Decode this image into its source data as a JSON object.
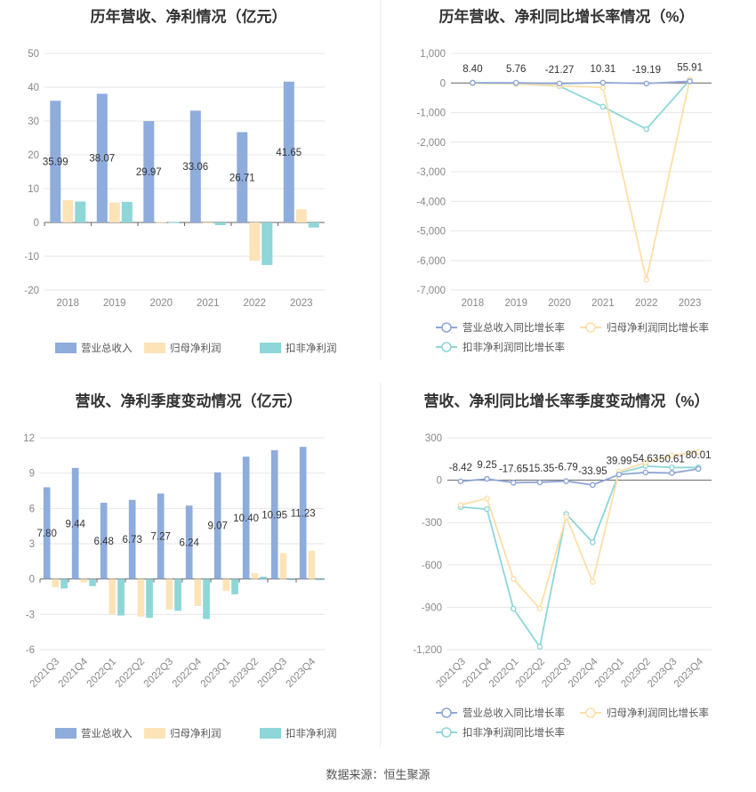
{
  "footer": "数据来源：恒生聚源",
  "colors": {
    "revenue": "#8eacdc",
    "net": "#fde3b8",
    "deducted": "#8ed6d8",
    "line_revenue": "#8ea6d6",
    "line_net": "#fddfa8",
    "line_deducted": "#8ed6d8"
  },
  "chart_data": [
    {
      "type": "bar",
      "title": "历年营收、净利情况（亿元）",
      "categories": [
        "2018",
        "2019",
        "2020",
        "2021",
        "2022",
        "2023"
      ],
      "ylim": [
        -20,
        50
      ],
      "yticks": [
        -20,
        -10,
        0,
        10,
        20,
        30,
        40,
        50
      ],
      "series": [
        {
          "name": "营业总收入",
          "values": [
            35.99,
            38.07,
            29.97,
            33.06,
            26.71,
            41.65
          ],
          "labels": [
            "35.99",
            "38.07",
            "29.97",
            "33.06",
            "26.71",
            "41.65"
          ]
        },
        {
          "name": "归母净利润",
          "values": [
            6.6,
            5.9,
            0.2,
            -0.2,
            -11.3,
            3.9
          ]
        },
        {
          "name": "扣非净利润",
          "values": [
            6.2,
            6.1,
            0.1,
            -0.8,
            -12.6,
            -1.5
          ]
        }
      ],
      "legend": "bottom"
    },
    {
      "type": "line",
      "title": "历年营收、净利同比增长率情况（%）",
      "categories": [
        "2018",
        "2019",
        "2020",
        "2021",
        "2022",
        "2023"
      ],
      "ylim": [
        -7000,
        1000
      ],
      "yticks": [
        -7000,
        -6000,
        -5000,
        -4000,
        -3000,
        -2000,
        -1000,
        0,
        1000
      ],
      "ytick_labels": [
        "-7,000",
        "-6,000",
        "-5,000",
        "-4,000",
        "-3,000",
        "-2,000",
        "-1,000",
        "0",
        "1,000"
      ],
      "series": [
        {
          "name": "营业总收入同比增长率",
          "values": [
            8.4,
            5.76,
            -21.27,
            10.31,
            -19.19,
            55.91
          ],
          "labels": [
            "8.40",
            "5.76",
            "-21.27",
            "10.31",
            "-19.19",
            "55.91"
          ]
        },
        {
          "name": "归母净利润同比增长率",
          "values": [
            -5,
            -20,
            -100,
            -150,
            -6650,
            120
          ]
        },
        {
          "name": "扣非净利润同比增长率",
          "values": [
            -10,
            -30,
            -110,
            -800,
            -1560,
            100
          ]
        }
      ],
      "legend": "bottom"
    },
    {
      "type": "bar",
      "title": "营收、净利季度变动情况（亿元）",
      "categories": [
        "2021Q3",
        "2021Q4",
        "2022Q1",
        "2022Q2",
        "2022Q3",
        "2022Q4",
        "2023Q1",
        "2023Q2",
        "2023Q3",
        "2023Q4"
      ],
      "ylim": [
        -6,
        12
      ],
      "yticks": [
        -6,
        -3,
        0,
        3,
        6,
        9,
        12
      ],
      "series": [
        {
          "name": "营业总收入",
          "values": [
            7.8,
            9.44,
            6.48,
            6.73,
            7.27,
            6.24,
            9.07,
            10.4,
            10.95,
            11.23
          ],
          "labels": [
            "7.80",
            "9.44",
            "6.48",
            "6.73",
            "7.27",
            "6.24",
            "9.07",
            "10.40",
            "10.95",
            "11.23"
          ]
        },
        {
          "name": "归母净利润",
          "values": [
            -0.7,
            -0.3,
            -3.0,
            -3.2,
            -2.6,
            -2.3,
            -1.0,
            0.5,
            2.2,
            2.4
          ]
        },
        {
          "name": "扣非净利润",
          "values": [
            -0.8,
            -0.6,
            -3.1,
            -3.3,
            -2.7,
            -3.4,
            -1.3,
            0.2,
            -0.1,
            -0.1
          ]
        }
      ],
      "legend": "bottom"
    },
    {
      "type": "line",
      "title": "营收、净利同比增长率季度变动情况（%）",
      "categories": [
        "2021Q3",
        "2021Q4",
        "2022Q1",
        "2022Q2",
        "2022Q3",
        "2022Q4",
        "2023Q1",
        "2023Q2",
        "2023Q3",
        "2023Q4"
      ],
      "ylim": [
        -1200,
        300
      ],
      "yticks": [
        -1200,
        -900,
        -600,
        -300,
        0,
        300
      ],
      "ytick_labels": [
        "-1,200",
        "-900",
        "-600",
        "-300",
        "0",
        "300"
      ],
      "series": [
        {
          "name": "营业总收入同比增长率",
          "values": [
            -8.42,
            9.25,
            -17.65,
            -15.35,
            -6.79,
            -33.95,
            39.99,
            54.63,
            50.61,
            80.01
          ],
          "labels": [
            "-8.42",
            "9.25",
            "-17.65",
            "-15.35",
            "-6.79",
            "-33.95",
            "39.99",
            "54.63",
            "50.61",
            "80.01"
          ]
        },
        {
          "name": "归母净利润同比增长率",
          "values": [
            -175,
            -130,
            -700,
            -910,
            -260,
            -720,
            60,
            125,
            175,
            200
          ]
        },
        {
          "name": "扣非净利润同比增长率",
          "values": [
            -190,
            -205,
            -910,
            -1180,
            -240,
            -440,
            50,
            100,
            90,
            90
          ]
        }
      ],
      "legend": "bottom"
    }
  ]
}
